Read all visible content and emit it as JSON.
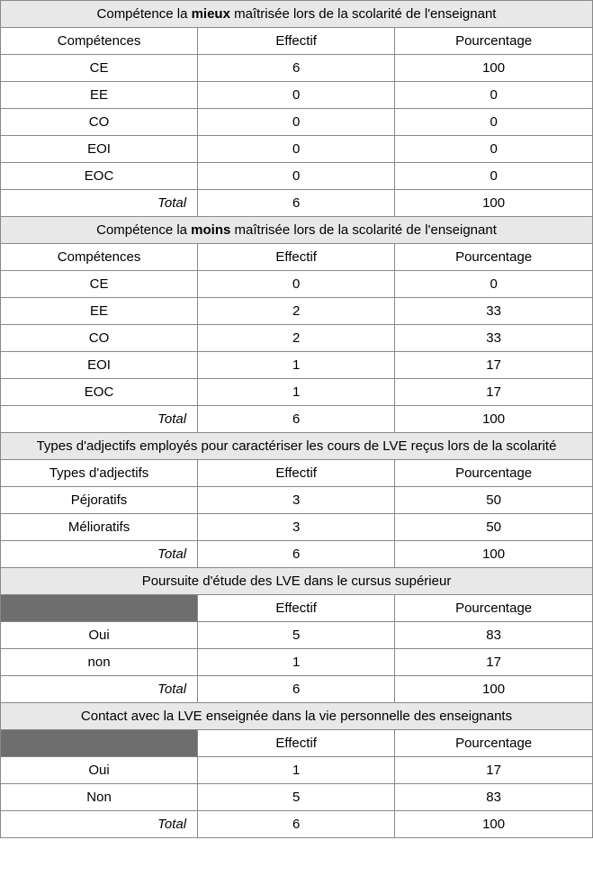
{
  "sections": [
    {
      "title_pre": "Compétence la ",
      "title_bold": "mieux",
      "title_post": " maîtrisée lors de la scolarité de l'enseignant",
      "cols": [
        "Compétences",
        "Effectif",
        "Pourcentage"
      ],
      "grey_first_col": false,
      "rows": [
        [
          "CE",
          "6",
          "100"
        ],
        [
          "EE",
          "0",
          "0"
        ],
        [
          "CO",
          "0",
          "0"
        ],
        [
          "EOI",
          "0",
          "0"
        ],
        [
          "EOC",
          "0",
          "0"
        ]
      ],
      "total": [
        "Total",
        "6",
        "100"
      ]
    },
    {
      "title_pre": "Compétence la ",
      "title_bold": "moins",
      "title_post": " maîtrisée lors de la scolarité de l'enseignant",
      "cols": [
        "Compétences",
        "Effectif",
        "Pourcentage"
      ],
      "grey_first_col": false,
      "rows": [
        [
          "CE",
          "0",
          "0"
        ],
        [
          "EE",
          "2",
          "33"
        ],
        [
          "CO",
          "2",
          "33"
        ],
        [
          "EOI",
          "1",
          "17"
        ],
        [
          "EOC",
          "1",
          "17"
        ]
      ],
      "total": [
        "Total",
        "6",
        "100"
      ]
    },
    {
      "title_pre": "Types d'adjectifs employés pour caractériser les cours de LVE reçus lors de la scolarité",
      "title_bold": "",
      "title_post": "",
      "cols": [
        "Types d'adjectifs",
        "Effectif",
        "Pourcentage"
      ],
      "grey_first_col": false,
      "rows": [
        [
          "Péjoratifs",
          "3",
          "50"
        ],
        [
          "Mélioratifs",
          "3",
          "50"
        ]
      ],
      "total": [
        "Total",
        "6",
        "100"
      ]
    },
    {
      "title_pre": "Poursuite d'étude des LVE dans le cursus supérieur",
      "title_bold": "",
      "title_post": "",
      "cols": [
        "",
        "Effectif",
        "Pourcentage"
      ],
      "grey_first_col": true,
      "rows": [
        [
          "Oui",
          "5",
          "83"
        ],
        [
          "non",
          "1",
          "17"
        ]
      ],
      "total": [
        "Total",
        "6",
        "100"
      ]
    },
    {
      "title_pre": "Contact avec la LVE enseignée dans la vie personnelle des enseignants",
      "title_bold": "",
      "title_post": "",
      "cols": [
        "",
        "Effectif",
        "Pourcentage"
      ],
      "grey_first_col": true,
      "rows": [
        [
          "Oui",
          "1",
          "17"
        ],
        [
          "Non",
          "5",
          "83"
        ]
      ],
      "total": [
        "Total",
        "6",
        "100"
      ]
    }
  ],
  "styling": {
    "header_bg": "#e8e8e8",
    "grey_cell_bg": "#6e6e6e",
    "border_color": "#888888",
    "text_color": "#000000",
    "font_size": 15,
    "font_family": "Arial"
  }
}
